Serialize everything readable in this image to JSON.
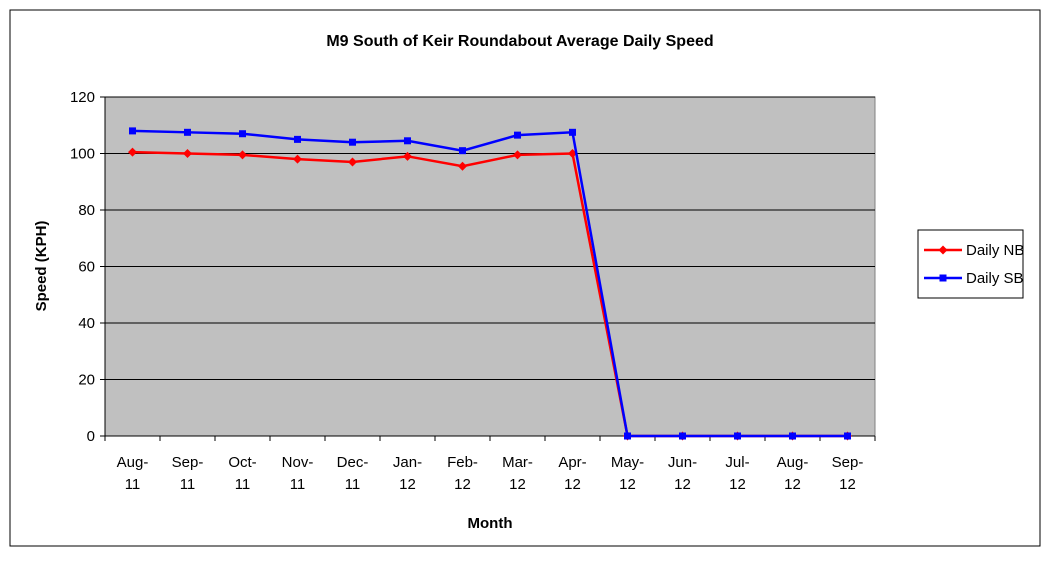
{
  "chart_data": {
    "type": "line",
    "title": "M9 South of Keir Roundabout Average Daily Speed",
    "x_label": "Month",
    "y_label": "Speed (KPH)",
    "categories": [
      "Aug-11",
      "Sep-11",
      "Oct-11",
      "Nov-11",
      "Dec-11",
      "Jan-12",
      "Feb-12",
      "Mar-12",
      "Apr-12",
      "May-12",
      "Jun-12",
      "Jul-12",
      "Aug-12",
      "Sep-12"
    ],
    "series": [
      {
        "name": "Daily NB",
        "color": "#ff0000",
        "marker": "diamond",
        "values": [
          100.5,
          100,
          99.5,
          98,
          97,
          99,
          95.5,
          99.5,
          100,
          0,
          0,
          0,
          0,
          0
        ]
      },
      {
        "name": "Daily SB",
        "color": "#0000ff",
        "marker": "square",
        "values": [
          108,
          107.5,
          107,
          105,
          104,
          104.5,
          101,
          106.5,
          107.5,
          0,
          0,
          0,
          0,
          0
        ]
      }
    ],
    "ylim": [
      0,
      120
    ],
    "yticks": [
      0,
      20,
      40,
      60,
      80,
      100,
      120
    ],
    "grid": true,
    "legend": "right",
    "plot_background": "#c0c0c0"
  }
}
